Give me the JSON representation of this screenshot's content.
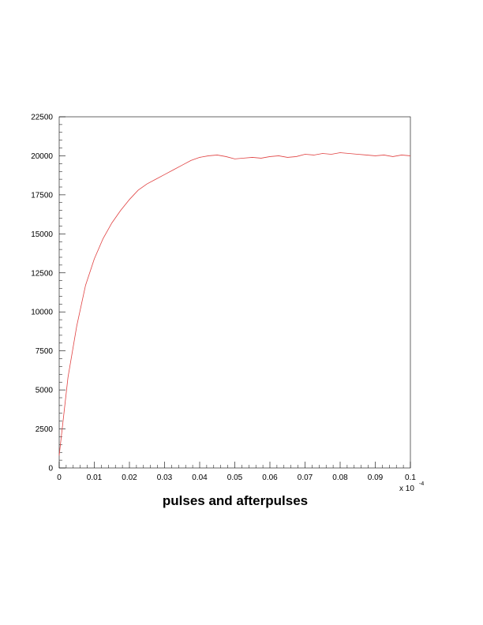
{
  "chart_data": {
    "type": "line",
    "title": "pulses and afterpulses",
    "xlabel": "",
    "ylabel": "",
    "x_exponent_label": "x 10",
    "x_exponent_power": "-4",
    "xlim": [
      0,
      0.1
    ],
    "ylim": [
      0,
      22500
    ],
    "x_ticks": [
      "0",
      "0.01",
      "0.02",
      "0.03",
      "0.04",
      "0.05",
      "0.06",
      "0.07",
      "0.08",
      "0.09",
      "0.1"
    ],
    "y_ticks": [
      "0",
      "2500",
      "5000",
      "7500",
      "10000",
      "12500",
      "15000",
      "17500",
      "20000",
      "22500"
    ],
    "grid": false,
    "series": [
      {
        "color": "#e04040",
        "x": [
          0,
          0.0025,
          0.005,
          0.0075,
          0.01,
          0.0125,
          0.015,
          0.0175,
          0.02,
          0.0225,
          0.025,
          0.0275,
          0.03,
          0.0325,
          0.035,
          0.0375,
          0.04,
          0.0425,
          0.045,
          0.0475,
          0.05,
          0.0525,
          0.055,
          0.0575,
          0.06,
          0.0625,
          0.065,
          0.0675,
          0.07,
          0.0725,
          0.075,
          0.0775,
          0.08,
          0.0825,
          0.085,
          0.0875,
          0.09,
          0.0925,
          0.095,
          0.0975,
          0.1
        ],
        "values": [
          800,
          5800,
          9100,
          11700,
          13400,
          14700,
          15700,
          16500,
          17200,
          17800,
          18200,
          18500,
          18800,
          19100,
          19400,
          19700,
          19900,
          20000,
          20050,
          19950,
          19800,
          19850,
          19900,
          19850,
          19950,
          20000,
          19900,
          19950,
          20100,
          20050,
          20150,
          20100,
          20200,
          20150,
          20100,
          20050,
          20000,
          20050,
          19950,
          20050,
          20000
        ]
      }
    ]
  }
}
